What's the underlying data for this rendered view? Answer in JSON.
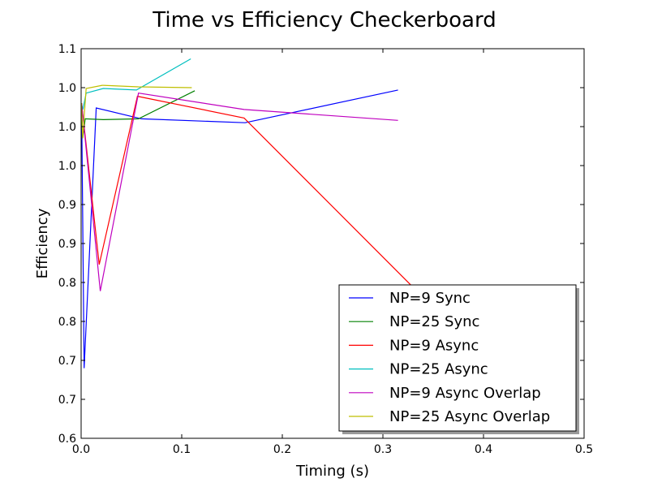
{
  "chart_data": {
    "type": "line",
    "title": "Time vs Efficiency Checkerboard",
    "xlabel": "Timing (s)",
    "ylabel": "Efficiency",
    "xlim": [
      0.0,
      0.5
    ],
    "ylim": [
      0.6,
      1.1
    ],
    "x_ticks": [
      0.0,
      0.1,
      0.2,
      0.3,
      0.4,
      0.5
    ],
    "x_tick_labels": [
      "0.0",
      "0.1",
      "0.2",
      "0.3",
      "0.4",
      "0.5"
    ],
    "y_ticks": [
      0.6,
      0.65,
      0.7,
      0.75,
      0.8,
      0.85,
      0.9,
      0.95,
      1.0,
      1.05,
      1.1
    ],
    "y_tick_labels": [
      "0.6",
      "0.7",
      "0.7",
      "0.8",
      "0.8",
      "0.9",
      "0.9",
      "1.0",
      "1.0",
      "1.0",
      "1.1"
    ],
    "grid": false,
    "legend_position": "lower-right",
    "series": [
      {
        "name": "NP=9 Sync",
        "color": "#0000ff",
        "x": [
          0.0005,
          0.003,
          0.015,
          0.06,
          0.163,
          0.315
        ],
        "y": [
          1.03,
          0.69,
          1.024,
          1.01,
          1.005,
          1.047
        ]
      },
      {
        "name": "NP=25 Sync",
        "color": "#008000",
        "x": [
          0.0003,
          0.0015,
          0.004,
          0.022,
          0.057,
          0.113
        ],
        "y": [
          1.03,
          0.985,
          1.01,
          1.009,
          1.01,
          1.046
        ]
      },
      {
        "name": "NP=9 Async",
        "color": "#ff0000",
        "x": [
          0.0005,
          0.018,
          0.056,
          0.162,
          0.36
        ],
        "y": [
          1.03,
          0.823,
          1.039,
          1.011,
          0.755
        ]
      },
      {
        "name": "NP=25 Async",
        "color": "#00bfbf",
        "x": [
          0.0003,
          0.0018,
          0.005,
          0.022,
          0.055,
          0.109
        ],
        "y": [
          1.03,
          1.022,
          1.043,
          1.049,
          1.047,
          1.087
        ]
      },
      {
        "name": "NP=9 Async Overlap",
        "color": "#bf00bf",
        "x": [
          0.0005,
          0.019,
          0.057,
          0.162,
          0.315
        ],
        "y": [
          1.03,
          0.789,
          1.043,
          1.022,
          1.008
        ]
      },
      {
        "name": "NP=25 Async Overlap",
        "color": "#bfbf00",
        "x": [
          0.0003,
          0.0015,
          0.005,
          0.021,
          0.057,
          0.11
        ],
        "y": [
          1.03,
          0.985,
          1.049,
          1.053,
          1.051,
          1.05
        ]
      }
    ]
  }
}
